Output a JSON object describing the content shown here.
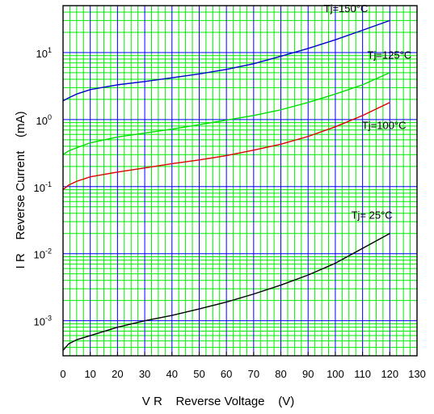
{
  "chart_data": {
    "type": "line",
    "xlabel": "V R    Reverse Voltage    (V)",
    "ylabel": "I R    Reverse Current    (mA)",
    "xlim": [
      0,
      130
    ],
    "ylim": [
      0.0003,
      50
    ],
    "y_scale": "log",
    "grid": true,
    "x_ticks": [
      0,
      10,
      20,
      30,
      40,
      50,
      60,
      70,
      80,
      90,
      100,
      110,
      120,
      130
    ],
    "x_tick_labels": [
      "0",
      "10",
      "20",
      "30",
      "40",
      "50",
      "60",
      "70",
      "80",
      "90",
      "100",
      "110",
      "120",
      "130"
    ],
    "y_ticks": [
      {
        "base": "10",
        "exp": "-3",
        "value": 0.001
      },
      {
        "base": "10",
        "exp": "-2",
        "value": 0.01
      },
      {
        "base": "10",
        "exp": "-1",
        "value": 0.1
      },
      {
        "base": "10",
        "exp": "0",
        "value": 1
      },
      {
        "base": "10",
        "exp": "1",
        "value": 10
      }
    ],
    "colors": {
      "major_grid": "#0000ff",
      "minor_grid": "#00ee00",
      "axis": "#000000"
    },
    "series": [
      {
        "name": "Tj=150°C",
        "color": "#0000cc",
        "label_at": [
          112,
          40
        ],
        "x": [
          0,
          2,
          5,
          10,
          20,
          30,
          40,
          50,
          60,
          70,
          80,
          90,
          100,
          110,
          120
        ],
        "y": [
          1.9,
          2.1,
          2.4,
          2.8,
          3.3,
          3.7,
          4.2,
          4.8,
          5.6,
          6.8,
          8.8,
          11.5,
          15.5,
          21.5,
          30
        ]
      },
      {
        "name": "Tj=125°C",
        "color": "#00dd00",
        "label_at": [
          128,
          8.1
        ],
        "x": [
          0,
          2,
          5,
          10,
          20,
          30,
          40,
          50,
          60,
          70,
          80,
          90,
          100,
          110,
          120
        ],
        "y": [
          0.3,
          0.34,
          0.38,
          0.45,
          0.55,
          0.63,
          0.72,
          0.84,
          0.98,
          1.15,
          1.4,
          1.8,
          2.4,
          3.3,
          5.0
        ]
      },
      {
        "name": "Tj=100°C",
        "color": "#dd0000",
        "label_at": [
          126,
          0.72
        ],
        "x": [
          0,
          2,
          5,
          10,
          20,
          30,
          40,
          50,
          60,
          70,
          80,
          90,
          100,
          110,
          120
        ],
        "y": [
          0.09,
          0.105,
          0.12,
          0.14,
          0.165,
          0.19,
          0.22,
          0.25,
          0.29,
          0.35,
          0.43,
          0.56,
          0.78,
          1.15,
          1.8
        ]
      },
      {
        "name": "Tj= 25°C",
        "color": "#000000",
        "label_at": [
          121,
          0.033
        ],
        "x": [
          0,
          2,
          5,
          10,
          20,
          30,
          40,
          50,
          60,
          70,
          80,
          90,
          100,
          110,
          120
        ],
        "y": [
          0.00036,
          0.00045,
          0.00052,
          0.0006,
          0.0008,
          0.001,
          0.0012,
          0.0015,
          0.0019,
          0.0025,
          0.0034,
          0.0048,
          0.0072,
          0.012,
          0.02
        ]
      }
    ]
  }
}
